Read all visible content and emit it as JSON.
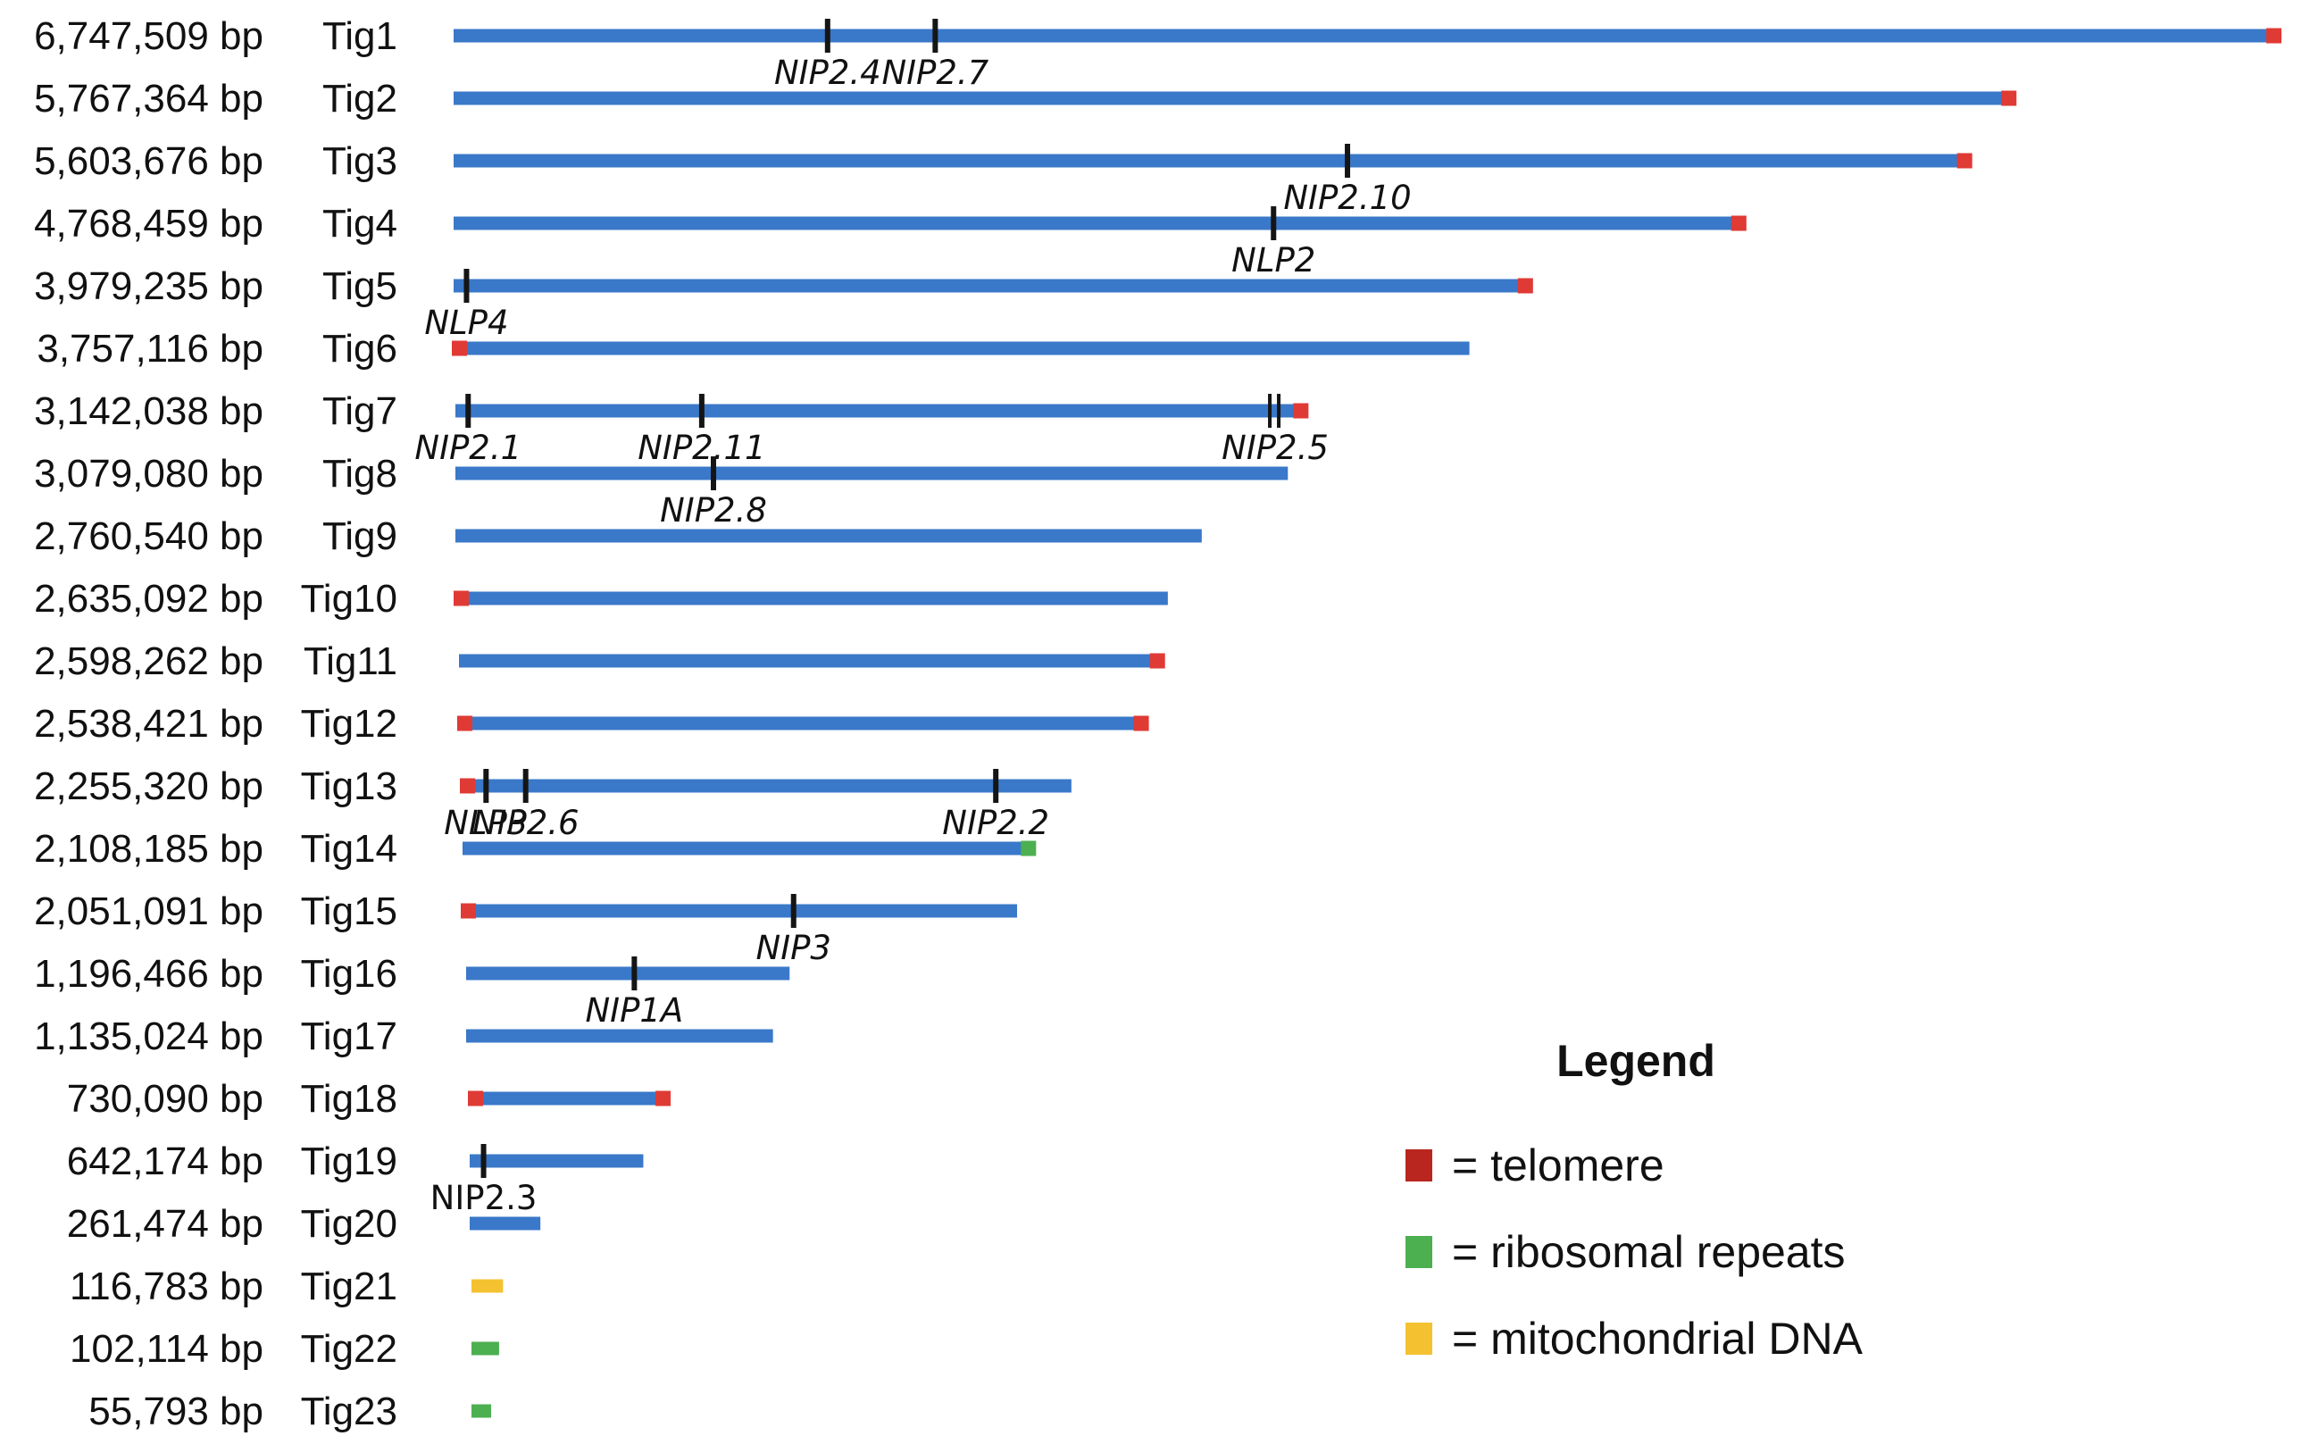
{
  "colors": {
    "contig": "#3a78c9",
    "telomere": "#e03a35",
    "ribosomal": "#4caf50",
    "mitochondrial": "#f4c230",
    "marker": "#151515",
    "legend_telomere": "#b8261f",
    "legend_ribosomal": "#4caf50",
    "legend_mitochondrial": "#f4c230"
  },
  "contigs": [
    {
      "name": "Tig1",
      "size_label": "6,747,509 bp",
      "bp": 6747509,
      "color": "contig",
      "telomeres": [
        "end"
      ],
      "markers": [
        {
          "label": "NIP2.4",
          "pos": 0.205
        },
        {
          "label": "NIP2.7",
          "pos": 0.264
        }
      ]
    },
    {
      "name": "Tig2",
      "size_label": "5,767,364 bp",
      "bp": 5767364,
      "color": "contig",
      "telomeres": [
        "end"
      ],
      "markers": []
    },
    {
      "name": "Tig3",
      "size_label": "5,603,676 bp",
      "bp": 5603676,
      "color": "contig",
      "telomeres": [
        "end"
      ],
      "markers": [
        {
          "label": "NIP2.10",
          "pos": 0.59
        }
      ]
    },
    {
      "name": "Tig4",
      "size_label": "4,768,459 bp",
      "bp": 4768459,
      "color": "contig",
      "telomeres": [
        "end"
      ],
      "markers": [
        {
          "label": "NLP2",
          "pos": 0.636
        }
      ]
    },
    {
      "name": "Tig5",
      "size_label": "3,979,235 bp",
      "bp": 3979235,
      "color": "contig",
      "telomeres": [
        "end"
      ],
      "markers": [
        {
          "label": "NLP4",
          "pos": 0.012
        }
      ]
    },
    {
      "name": "Tig6",
      "size_label": "3,757,116 bp",
      "bp": 3757116,
      "color": "contig",
      "telomeres": [
        "start"
      ],
      "markers": []
    },
    {
      "name": "Tig7",
      "size_label": "3,142,038 bp",
      "bp": 3142038,
      "color": "contig",
      "telomeres": [
        "end"
      ],
      "markers": [
        {
          "label": "NIP2.1",
          "pos": 0.015
        },
        {
          "label": "NIP2.11",
          "pos": 0.29
        },
        {
          "label": "NIP2.5",
          "pos": 0.965,
          "double": true
        }
      ]
    },
    {
      "name": "Tig8",
      "size_label": "3,079,080 bp",
      "bp": 3079080,
      "color": "contig",
      "telomeres": [],
      "markers": [
        {
          "label": "NIP2.8",
          "pos": 0.31
        }
      ]
    },
    {
      "name": "Tig9",
      "size_label": "2,760,540 bp",
      "bp": 2760540,
      "color": "contig",
      "telomeres": [],
      "markers": []
    },
    {
      "name": "Tig10",
      "size_label": "2,635,092 bp",
      "bp": 2635092,
      "color": "contig",
      "telomeres": [
        "start"
      ],
      "markers": []
    },
    {
      "name": "Tig11",
      "size_label": "2,598,262 bp",
      "bp": 2598262,
      "color": "contig",
      "telomeres": [
        "end"
      ],
      "markers": []
    },
    {
      "name": "Tig12",
      "size_label": "2,538,421 bp",
      "bp": 2538421,
      "color": "contig",
      "telomeres": [
        "start",
        "end"
      ],
      "markers": []
    },
    {
      "name": "Tig13",
      "size_label": "2,255,320 bp",
      "bp": 2255320,
      "color": "contig",
      "telomeres": [
        "start"
      ],
      "markers": [
        {
          "label": "NLP3",
          "pos": 0.04
        },
        {
          "label": "NIP2.6",
          "pos": 0.105
        },
        {
          "label": "NIP2.2",
          "pos": 0.876
        }
      ]
    },
    {
      "name": "Tig14",
      "size_label": "2,108,185 bp",
      "bp": 2108185,
      "color": "contig",
      "ribosomal_end": true,
      "telomeres": [],
      "markers": []
    },
    {
      "name": "Tig15",
      "size_label": "2,051,091 bp",
      "bp": 2051091,
      "color": "contig",
      "telomeres": [
        "start"
      ],
      "markers": [
        {
          "label": "NIP3",
          "pos": 0.597
        }
      ]
    },
    {
      "name": "Tig16",
      "size_label": "1,196,466 bp",
      "bp": 1196466,
      "color": "contig",
      "telomeres": [],
      "markers": [
        {
          "label": "NIP1A",
          "pos": 0.52
        }
      ]
    },
    {
      "name": "Tig17",
      "size_label": "1,135,024 bp",
      "bp": 1135024,
      "color": "contig",
      "telomeres": [],
      "markers": []
    },
    {
      "name": "Tig18",
      "size_label": "730,090 bp",
      "bp": 730090,
      "color": "contig",
      "telomeres": [
        "start",
        "end"
      ],
      "markers": []
    },
    {
      "name": "Tig19",
      "size_label": "642,174 bp",
      "bp": 642174,
      "color": "contig",
      "telomeres": [],
      "markers": [
        {
          "label": "NIP2.3",
          "pos": 0.08,
          "upright": true
        }
      ]
    },
    {
      "name": "Tig20",
      "size_label": "261,474 bp",
      "bp": 261474,
      "color": "contig",
      "telomeres": [],
      "markers": []
    },
    {
      "name": "Tig21",
      "size_label": "116,783 bp",
      "bp": 116783,
      "color": "mitochondrial",
      "telomeres": [],
      "markers": []
    },
    {
      "name": "Tig22",
      "size_label": "102,114 bp",
      "bp": 102114,
      "color": "ribosomal",
      "telomeres": [],
      "markers": []
    },
    {
      "name": "Tig23",
      "size_label": "55,793 bp",
      "bp": 55793,
      "color": "ribosomal",
      "telomeres": [],
      "markers": []
    }
  ],
  "legend": {
    "title": "Legend",
    "items": [
      {
        "label": "= telomere",
        "color": "legend_telomere"
      },
      {
        "label": "= ribosomal repeats",
        "color": "legend_ribosomal"
      },
      {
        "label": "= mitochondrial DNA",
        "color": "legend_mitochondrial"
      }
    ]
  }
}
